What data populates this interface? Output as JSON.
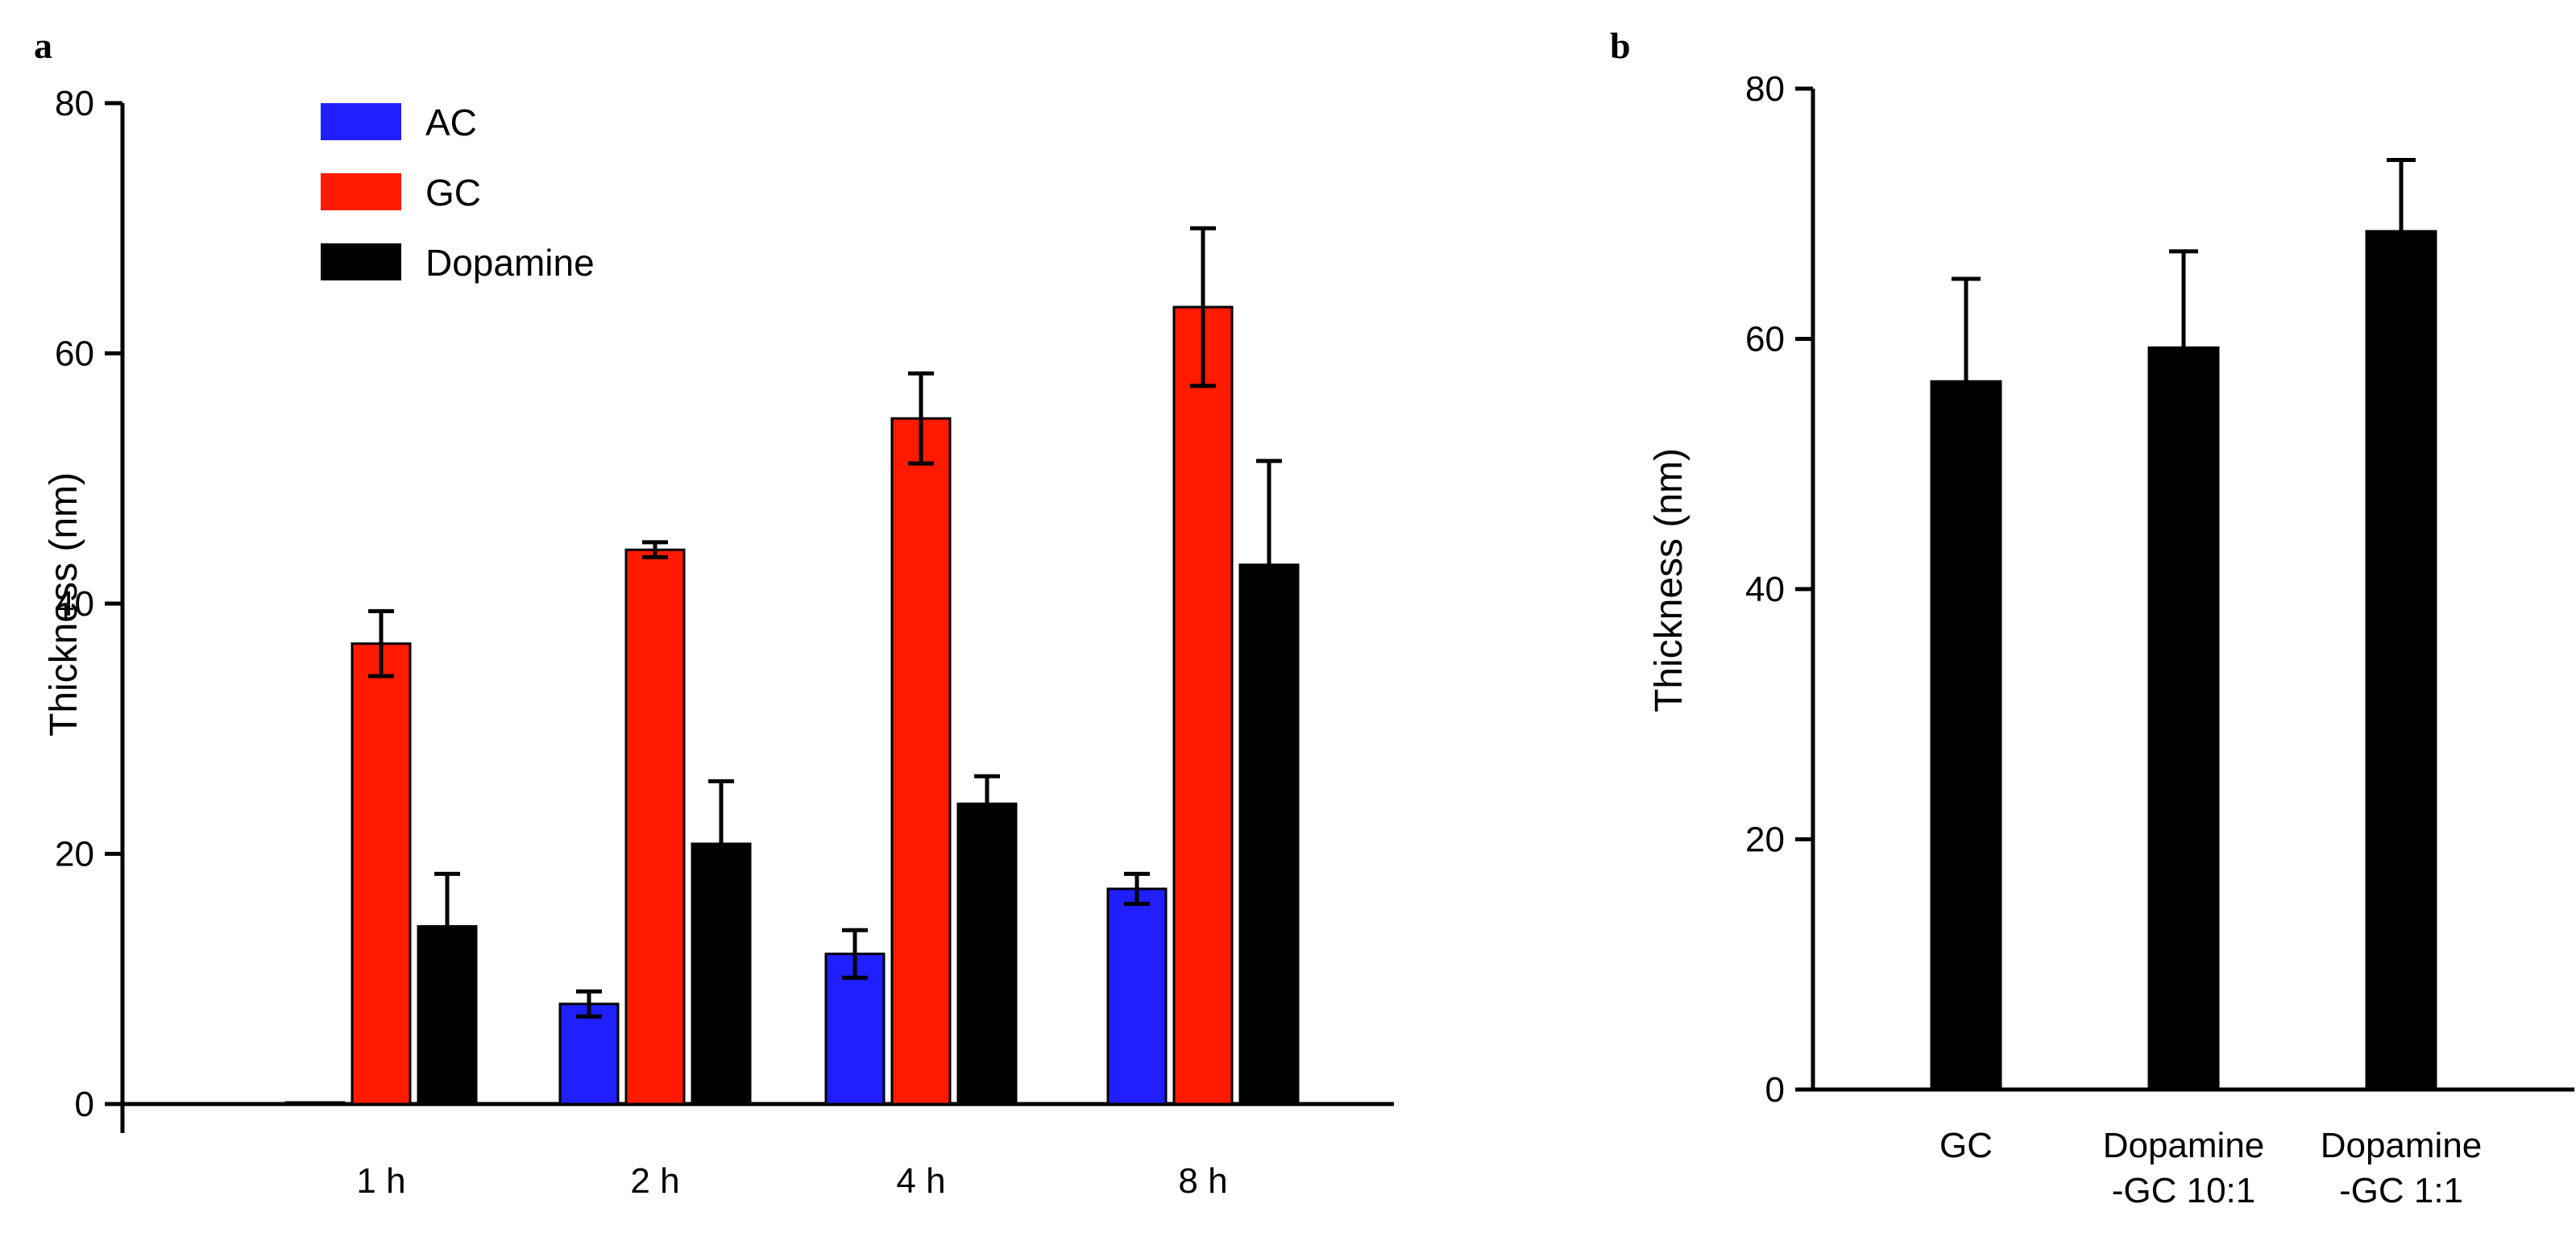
{
  "chart_data": [
    {
      "panel": "a",
      "type": "bar",
      "title": "",
      "xlabel": "",
      "ylabel": "Thickness (nm)",
      "ylim": [
        0,
        80
      ],
      "yticks": [
        0,
        20,
        40,
        60,
        80
      ],
      "grid": false,
      "legend_position": "top-left",
      "categories": [
        "1 h",
        "2 h",
        "4 h",
        "8 h"
      ],
      "series": [
        {
          "name": "AC",
          "color": "#1f1fff",
          "values": [
            0,
            8,
            12,
            17.2
          ],
          "errors": [
            0,
            1,
            1.9,
            1.2
          ]
        },
        {
          "name": "GC",
          "color": "#ff1a00",
          "values": [
            36.8,
            44.3,
            54.8,
            63.7
          ],
          "errors": [
            2.6,
            0.6,
            3.6,
            6.3
          ]
        },
        {
          "name": "Dopamine",
          "color": "#000000",
          "values": [
            14.2,
            20.8,
            24,
            43.1
          ],
          "errors": [
            4.2,
            5,
            2.2,
            8.3
          ]
        }
      ]
    },
    {
      "panel": "b",
      "type": "bar",
      "title": "",
      "xlabel": "",
      "ylabel": "Thickness (nm)",
      "ylim": [
        0,
        80
      ],
      "yticks": [
        0,
        20,
        40,
        60,
        80
      ],
      "grid": false,
      "categories": [
        [
          "GC"
        ],
        [
          "Dopamine",
          "-GC 10:1"
        ],
        [
          "Dopamine",
          "-GC 1:1"
        ]
      ],
      "series": [
        {
          "name": "Thickness",
          "color": "#000000",
          "values": [
            56.6,
            59.3,
            68.6
          ],
          "errors": [
            8.2,
            7.7,
            5.7
          ]
        }
      ]
    }
  ]
}
